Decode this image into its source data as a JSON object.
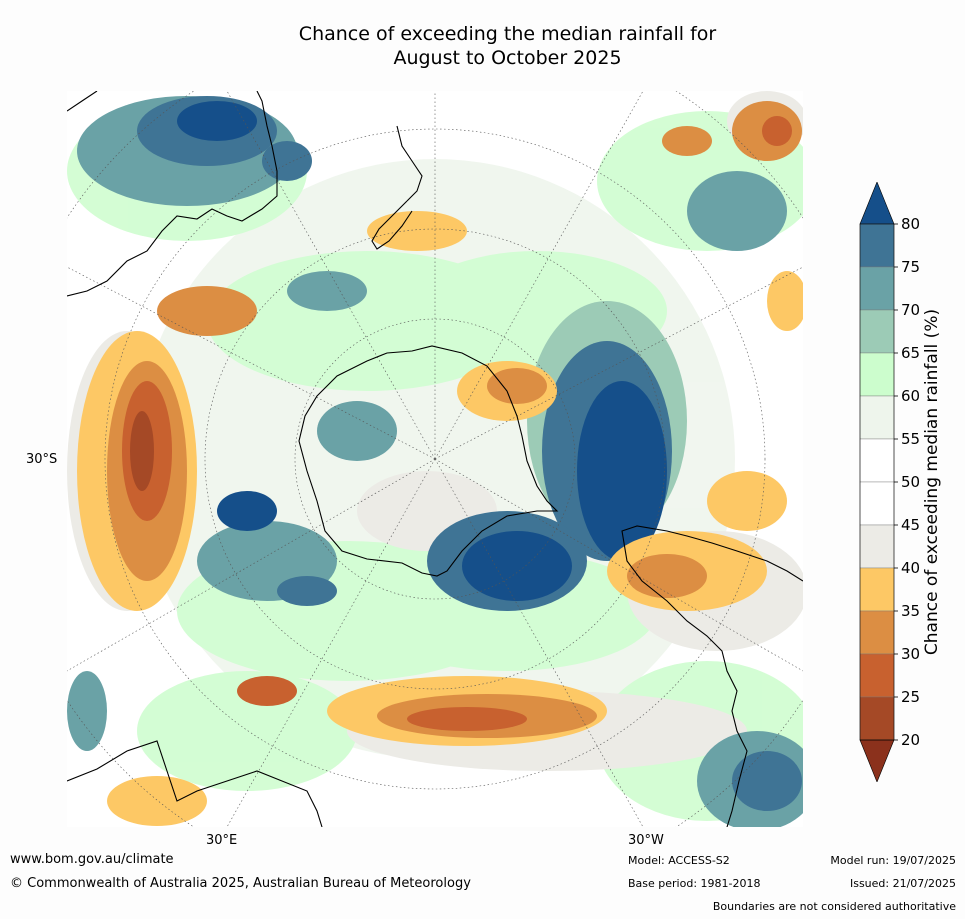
{
  "title": {
    "line1": "Chance of exceeding the median rainfall for",
    "line2": "August to October 2025"
  },
  "map": {
    "projection": "south polar stereographic",
    "lat_label": "30°S",
    "lon_labels": [
      "30°E",
      "30°W"
    ]
  },
  "legend": {
    "title": "Chance of exceeding median rainfall (%)",
    "unit": "%",
    "ticks": [
      "80",
      "75",
      "70",
      "65",
      "60",
      "55",
      "50",
      "45",
      "40",
      "35",
      "30",
      "25",
      "20"
    ],
    "bins": [
      {
        "range": ">80",
        "color": "#154f8a"
      },
      {
        "range": "75-80",
        "color": "#3f7495"
      },
      {
        "range": "70-75",
        "color": "#6aa2a6"
      },
      {
        "range": "65-70",
        "color": "#9ccbb6"
      },
      {
        "range": "60-65",
        "color": "#ccfdcd"
      },
      {
        "range": "55-60",
        "color": "#eef5ec"
      },
      {
        "range": "50-55",
        "color": "#ffffff"
      },
      {
        "range": "45-50",
        "color": "#ffffff"
      },
      {
        "range": "40-45",
        "color": "#ecebe6"
      },
      {
        "range": "35-40",
        "color": "#fdc865"
      },
      {
        "range": "30-35",
        "color": "#dc8e43"
      },
      {
        "range": "25-30",
        "color": "#c8612f"
      },
      {
        "range": "20-25",
        "color": "#a54926"
      },
      {
        "range": "<20",
        "color": "#8b311c"
      }
    ]
  },
  "footer": {
    "website": "www.bom.gov.au/climate",
    "copyright": "© Commonwealth of Australia 2025, Australian Bureau of Meteorology",
    "model": "Model: ACCESS-S2",
    "base_period": "Base period: 1981-2018",
    "model_run": "Model run: 19/07/2025",
    "issued": "Issued: 21/07/2025",
    "disclaimer": "Boundaries are not considered authoritative"
  }
}
